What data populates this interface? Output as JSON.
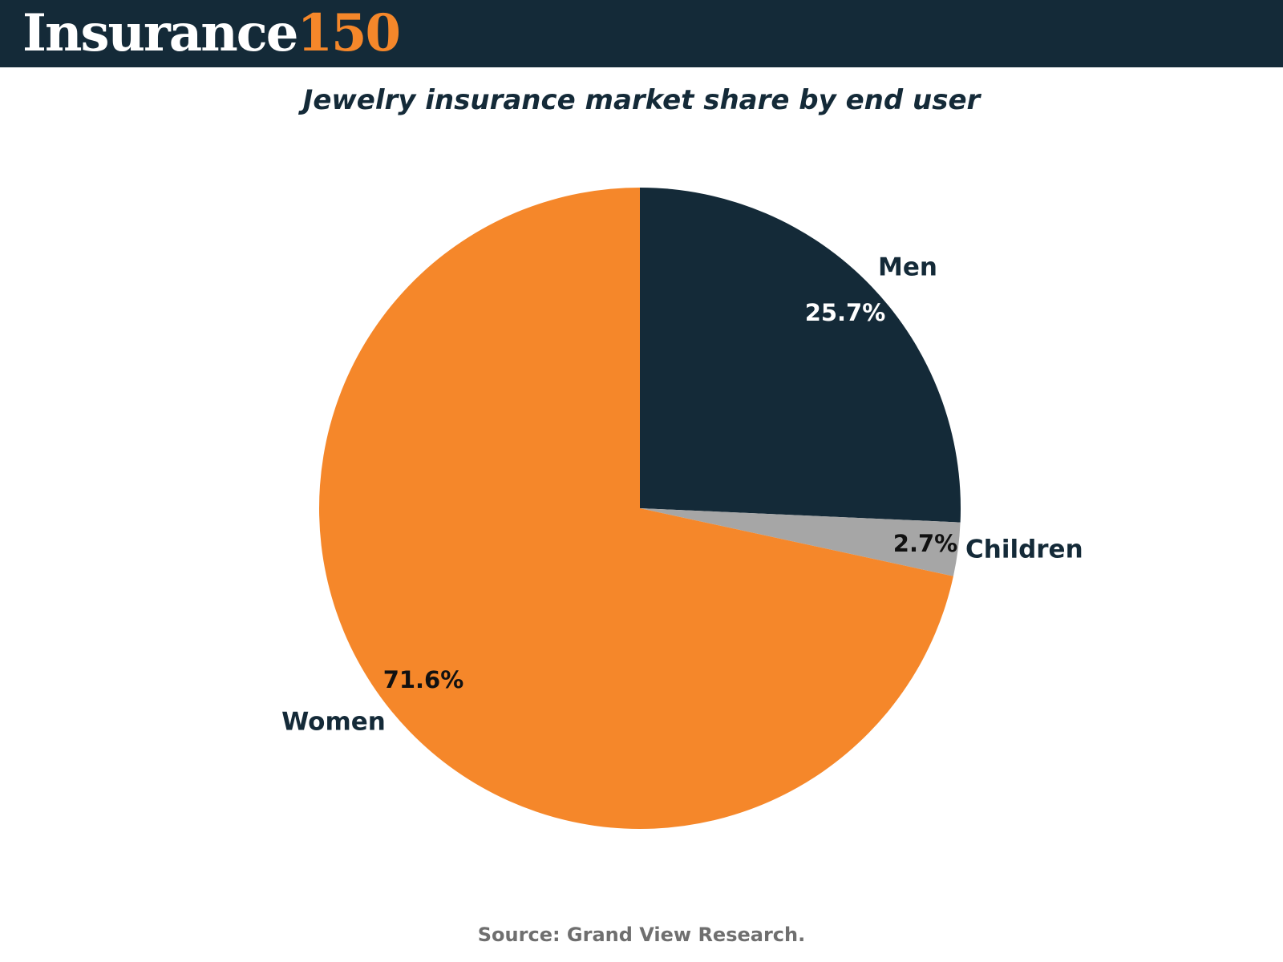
{
  "brand": {
    "word": "Insurance",
    "number": "150",
    "header_color": "#142a38",
    "accent_color": "#f5872a"
  },
  "source": "Source: Grand View Research.",
  "chart_data": {
    "type": "pie",
    "title": "Jewelry insurance market share by end user",
    "start": "12 o'clock, clockwise",
    "slices": [
      {
        "label": "Men",
        "value": 25.7,
        "value_label": "25.7%",
        "color": "#142a38",
        "pct_color": "#ffffff"
      },
      {
        "label": "Children",
        "value": 2.7,
        "value_label": "2.7%",
        "color": "#a6a6a6",
        "pct_color": "#111111"
      },
      {
        "label": "Women",
        "value": 71.6,
        "value_label": "71.6%",
        "color": "#f5872a",
        "pct_color": "#111111"
      }
    ]
  }
}
